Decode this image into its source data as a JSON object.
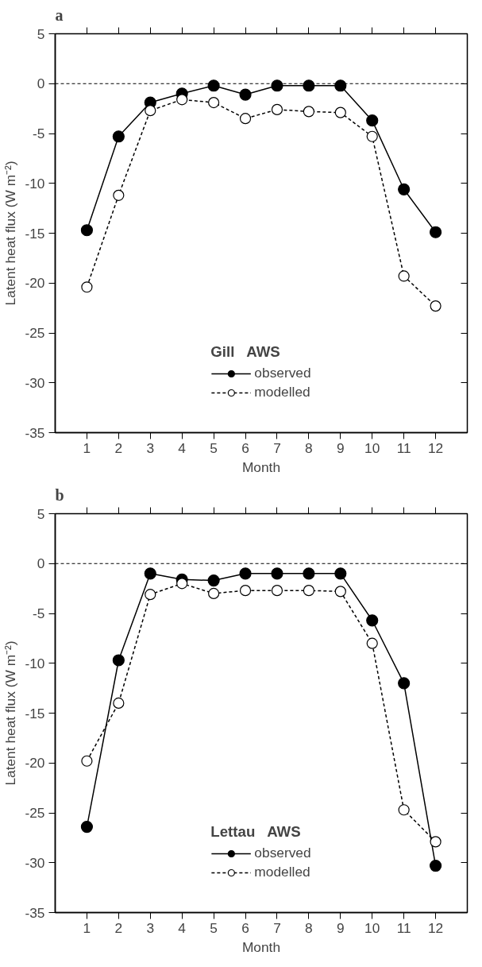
{
  "chart_data": [
    {
      "type": "line",
      "title": "a",
      "xlabel": "Month",
      "ylabel": "Latent heat flux (W m⁻²)",
      "legend_title": "Gill   AWS",
      "legend": "bottom",
      "grid": false,
      "marker": "circle",
      "x": [
        1,
        2,
        3,
        4,
        5,
        6,
        7,
        8,
        9,
        10,
        11,
        12
      ],
      "xlim": [
        0,
        13
      ],
      "xticks": [
        1,
        2,
        3,
        4,
        5,
        6,
        7,
        8,
        9,
        10,
        11,
        12
      ],
      "ylim": [
        -35,
        5
      ],
      "yticks": [
        5,
        0,
        -5,
        -10,
        -15,
        -20,
        -25,
        -30,
        -35
      ],
      "ref_lines": [
        {
          "axis": "y",
          "value": 0,
          "label": null,
          "color": "#000000",
          "line_style": "dashed"
        }
      ],
      "series": [
        {
          "name": "observed",
          "color": "#000000",
          "line_style": "solid",
          "values": [
            -14.7,
            -5.3,
            -1.9,
            -1.0,
            -0.2,
            -1.1,
            -0.2,
            -0.2,
            -0.2,
            -3.7,
            -10.6,
            -14.9
          ]
        },
        {
          "name": "modelled",
          "color": "#000000",
          "line_style": "dashed",
          "values": [
            -20.4,
            -11.2,
            -2.7,
            -1.6,
            -1.9,
            -3.5,
            -2.6,
            -2.8,
            -2.9,
            -5.3,
            -19.3,
            -22.3
          ]
        }
      ]
    },
    {
      "type": "line",
      "title": "b",
      "xlabel": "Month",
      "ylabel": "Latent heat flux (W m⁻²)",
      "legend_title": "Lettau   AWS",
      "legend": "bottom",
      "grid": false,
      "marker": "circle",
      "x": [
        1,
        2,
        3,
        4,
        5,
        6,
        7,
        8,
        9,
        10,
        11,
        12
      ],
      "xlim": [
        0,
        13
      ],
      "xticks": [
        1,
        2,
        3,
        4,
        5,
        6,
        7,
        8,
        9,
        10,
        11,
        12
      ],
      "ylim": [
        -35,
        5
      ],
      "yticks": [
        5,
        0,
        -5,
        -10,
        -15,
        -20,
        -25,
        -30,
        -35
      ],
      "ref_lines": [
        {
          "axis": "y",
          "value": 0,
          "label": null,
          "color": "#000000",
          "line_style": "dashed"
        }
      ],
      "series": [
        {
          "name": "observed",
          "color": "#000000",
          "line_style": "solid",
          "values": [
            -26.4,
            -9.7,
            -1.0,
            -1.6,
            -1.7,
            -1.0,
            -1.0,
            -1.0,
            -1.0,
            -5.7,
            -12.0,
            -30.3
          ]
        },
        {
          "name": "modelled",
          "color": "#000000",
          "line_style": "dashed",
          "values": [
            -19.8,
            -14.0,
            -3.1,
            -2.0,
            -3.0,
            -2.7,
            -2.7,
            -2.7,
            -2.8,
            -8.0,
            -24.7,
            -27.9
          ]
        }
      ]
    }
  ]
}
